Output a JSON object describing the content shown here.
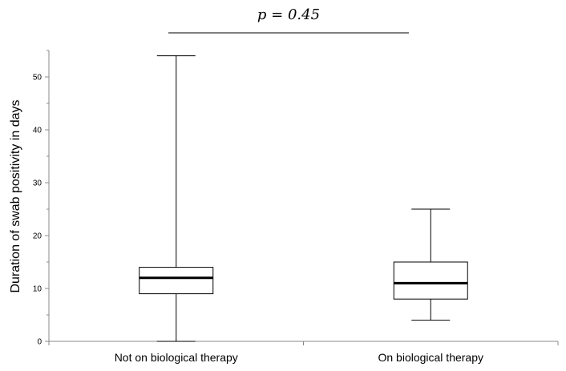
{
  "chart_data": {
    "type": "boxplot",
    "title": "",
    "xlabel": "",
    "ylabel": "Duration of swab positivity in days",
    "ylim": [
      0,
      55
    ],
    "yticks": [
      0,
      10,
      20,
      30,
      40,
      50
    ],
    "grid": false,
    "categories": [
      "Not on biological therapy",
      "On biological therapy"
    ],
    "boxes": [
      {
        "category": "Not on biological therapy",
        "min": 0,
        "q1": 9,
        "median": 12,
        "q3": 14,
        "max": 54
      },
      {
        "category": "On biological therapy",
        "min": 4,
        "q1": 8,
        "median": 11,
        "q3": 15,
        "max": 25
      }
    ],
    "annotation": {
      "text": "p = 0.45",
      "spans": [
        "Not on biological therapy",
        "On biological therapy"
      ]
    }
  }
}
